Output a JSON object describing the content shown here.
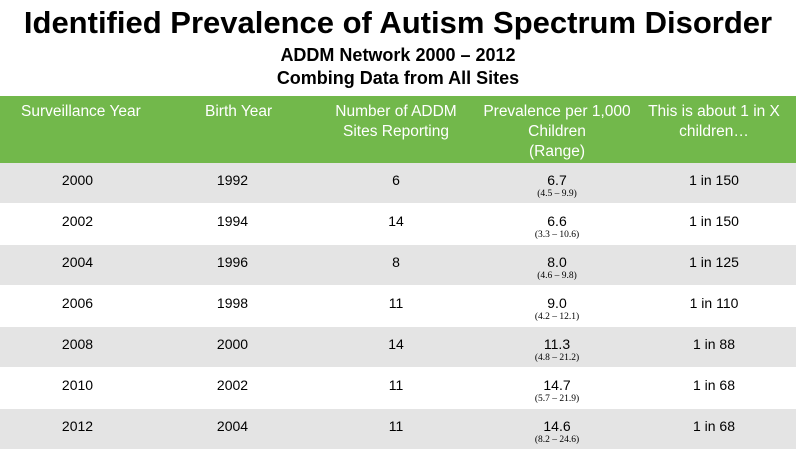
{
  "title": "Identified Prevalence of Autism Spectrum Disorder",
  "subtitle1": "ADDM Network 2000 – 2012",
  "subtitle2": "Combing Data from All Sites",
  "headers": {
    "surveillance_year": "Surveillance Year",
    "birth_year": "Birth Year",
    "sites_line1": "Number of ADDM",
    "sites_line2": "Sites Reporting",
    "prev_line1": "Prevalence per 1,000",
    "prev_line2": "Children",
    "prev_line3": "(Range)",
    "ratio_line1": "This is about 1 in X",
    "ratio_line2": "children…"
  },
  "rows": [
    {
      "surveillance_year": "2000",
      "birth_year": "1992",
      "sites": "6",
      "prevalence": "6.7",
      "range": "(4.5 – 9.9)",
      "ratio": "1 in 150"
    },
    {
      "surveillance_year": "2002",
      "birth_year": "1994",
      "sites": "14",
      "prevalence": "6.6",
      "range": "(3.3 – 10.6)",
      "ratio": "1 in 150"
    },
    {
      "surveillance_year": "2004",
      "birth_year": "1996",
      "sites": "8",
      "prevalence": "8.0",
      "range": "(4.6 – 9.8)",
      "ratio": "1 in 125"
    },
    {
      "surveillance_year": "2006",
      "birth_year": "1998",
      "sites": "11",
      "prevalence": "9.0",
      "range": "(4.2 – 12.1)",
      "ratio": "1 in 110"
    },
    {
      "surveillance_year": "2008",
      "birth_year": "2000",
      "sites": "14",
      "prevalence": "11.3",
      "range": "(4.8 – 21.2)",
      "ratio": "1 in 88"
    },
    {
      "surveillance_year": "2010",
      "birth_year": "2002",
      "sites": "11",
      "prevalence": "14.7",
      "range": "(5.7 – 21.9)",
      "ratio": "1 in 68"
    },
    {
      "surveillance_year": "2012",
      "birth_year": "2004",
      "sites": "11",
      "prevalence": "14.6",
      "range": "(8.2 – 24.6)",
      "ratio": "1 in 68"
    }
  ],
  "colors": {
    "header_bg": "#72b84b",
    "row_alt_bg": "#e4e4e4"
  }
}
